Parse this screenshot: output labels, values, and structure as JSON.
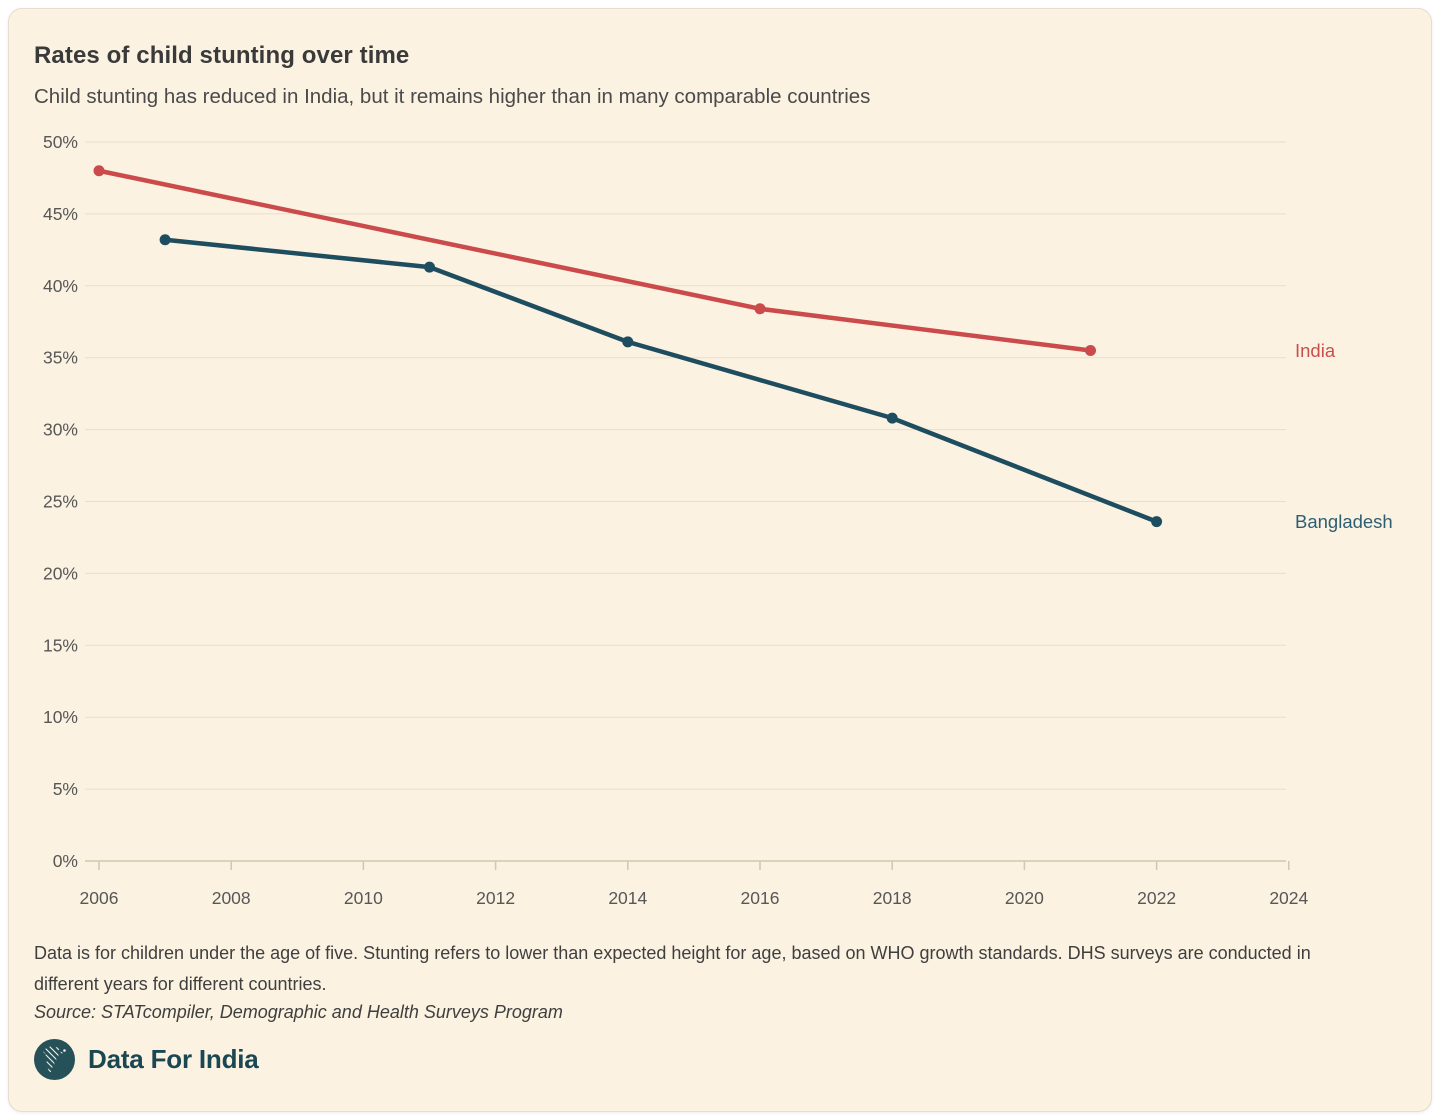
{
  "chart_data": {
    "type": "line",
    "title": "Rates of child stunting over time",
    "subtitle": "Child stunting has reduced in India, but it remains higher than in many comparable countries",
    "xlabel": "",
    "ylabel": "",
    "xlim": [
      2006,
      2024
    ],
    "ylim": [
      0,
      50
    ],
    "grid": "horizontal",
    "unit": "%",
    "x_ticks": [
      2006,
      2008,
      2010,
      2012,
      2014,
      2016,
      2018,
      2020,
      2022,
      2024
    ],
    "y_ticks": [
      {
        "value": 50,
        "label": "50%"
      },
      {
        "value": 45,
        "label": "45%"
      },
      {
        "value": 40,
        "label": "40%"
      },
      {
        "value": 35,
        "label": "35%"
      },
      {
        "value": 30,
        "label": "30%"
      },
      {
        "value": 25,
        "label": "25%"
      },
      {
        "value": 20,
        "label": "20%"
      },
      {
        "value": 15,
        "label": "15%"
      },
      {
        "value": 10,
        "label": "10%"
      },
      {
        "value": 5,
        "label": "5%"
      },
      {
        "value": 0,
        "label": "0%"
      }
    ],
    "legend_position": "right-of-line-end",
    "series": [
      {
        "name": "India",
        "line_color": "#cb4a4b",
        "label_color": "#c94f4e",
        "points": [
          {
            "year": 2006,
            "value": 48.0
          },
          {
            "year": 2016,
            "value": 38.4
          },
          {
            "year": 2021,
            "value": 35.5
          }
        ]
      },
      {
        "name": "Bangladesh",
        "line_color": "#1e4d60",
        "label_color": "#2d5f74",
        "points": [
          {
            "year": 2007,
            "value": 43.2
          },
          {
            "year": 2011,
            "value": 41.3
          },
          {
            "year": 2014,
            "value": 36.1
          },
          {
            "year": 2018,
            "value": 30.8
          },
          {
            "year": 2022,
            "value": 23.6
          }
        ]
      }
    ]
  },
  "footer": {
    "note": "Data is for children under the age of five. Stunting refers to lower than expected height for age, based on WHO growth standards. DHS surveys are conducted in different years for different countries.",
    "source": "Source: STATcompiler, Demographic and Health Surveys Program",
    "brand": "Data For India"
  },
  "colors": {
    "card_background": "#fbf2e1",
    "gridline": "#e8dfca",
    "axis": "#d2c7ae",
    "tick_text": "#575757",
    "title_text": "#3a3a3a",
    "subtitle_text": "#4a4a4a",
    "logo_circle": "#265159"
  }
}
